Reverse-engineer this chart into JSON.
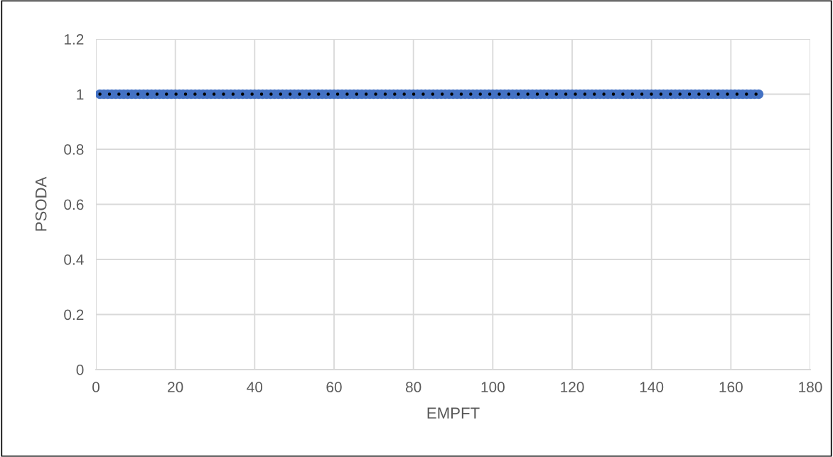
{
  "chart_data": {
    "type": "scatter",
    "xlabel": "EMPFT",
    "ylabel": "PSODA",
    "xlim": [
      0,
      180
    ],
    "xticks": [
      0,
      20,
      40,
      60,
      80,
      100,
      120,
      140,
      160,
      180
    ],
    "ylim": [
      0,
      1.2
    ],
    "yticks": [
      0,
      0.2,
      0.4,
      0.6,
      0.8,
      1,
      1.2
    ],
    "grid": true,
    "marker": "circle",
    "series": [
      {
        "color": "#4472c4",
        "x": [
          1,
          2,
          3,
          4,
          5,
          6,
          7,
          8,
          9,
          10,
          11,
          12,
          13,
          14,
          15,
          16,
          17,
          18,
          19,
          20,
          21,
          22,
          23,
          24,
          25,
          26,
          27,
          28,
          29,
          30,
          31,
          32,
          33,
          34,
          35,
          36,
          37,
          38,
          39,
          40,
          41,
          42,
          43,
          44,
          45,
          46,
          47,
          48,
          49,
          50,
          51,
          52,
          53,
          54,
          55,
          56,
          57,
          58,
          59,
          60,
          61,
          62,
          63,
          64,
          65,
          66,
          67,
          68,
          69,
          70,
          71,
          72,
          73,
          74,
          75,
          76,
          77,
          78,
          79,
          80,
          81,
          82,
          83,
          84,
          85,
          86,
          87,
          88,
          89,
          90,
          91,
          92,
          93,
          94,
          95,
          96,
          97,
          98,
          99,
          100,
          101,
          102,
          103,
          104,
          105,
          106,
          107,
          108,
          109,
          110,
          111,
          112,
          113,
          114,
          115,
          116,
          117,
          118,
          119,
          120,
          121,
          122,
          123,
          124,
          125,
          126,
          127,
          128,
          129,
          130,
          131,
          132,
          133,
          134,
          135,
          136,
          137,
          138,
          139,
          140,
          141,
          142,
          143,
          144,
          145,
          146,
          147,
          148,
          149,
          150,
          151,
          152,
          153,
          154,
          155,
          156,
          157,
          158,
          159,
          160,
          161,
          162,
          163,
          164,
          165,
          166,
          167
        ],
        "values": [
          1,
          1,
          1,
          1,
          1,
          1,
          1,
          1,
          1,
          1,
          1,
          1,
          1,
          1,
          1,
          1,
          1,
          1,
          1,
          1,
          1,
          1,
          1,
          1,
          1,
          1,
          1,
          1,
          1,
          1,
          1,
          1,
          1,
          1,
          1,
          1,
          1,
          1,
          1,
          1,
          1,
          1,
          1,
          1,
          1,
          1,
          1,
          1,
          1,
          1,
          1,
          1,
          1,
          1,
          1,
          1,
          1,
          1,
          1,
          1,
          1,
          1,
          1,
          1,
          1,
          1,
          1,
          1,
          1,
          1,
          1,
          1,
          1,
          1,
          1,
          1,
          1,
          1,
          1,
          1,
          1,
          1,
          1,
          1,
          1,
          1,
          1,
          1,
          1,
          1,
          1,
          1,
          1,
          1,
          1,
          1,
          1,
          1,
          1,
          1,
          1,
          1,
          1,
          1,
          1,
          1,
          1,
          1,
          1,
          1,
          1,
          1,
          1,
          1,
          1,
          1,
          1,
          1,
          1,
          1,
          1,
          1,
          1,
          1,
          1,
          1,
          1,
          1,
          1,
          1,
          1,
          1,
          1,
          1,
          1,
          1,
          1,
          1,
          1,
          1,
          1,
          1,
          1,
          1,
          1,
          1,
          1,
          1,
          1,
          1,
          1,
          1,
          1,
          1,
          1,
          1,
          1,
          1,
          1,
          1,
          1,
          1,
          1,
          1,
          1,
          1,
          1
        ]
      },
      {
        "type": "line",
        "color": "#000000",
        "line_style": "dotted",
        "marker": "none",
        "x": [
          1,
          167
        ],
        "values": [
          1,
          1
        ]
      }
    ]
  }
}
